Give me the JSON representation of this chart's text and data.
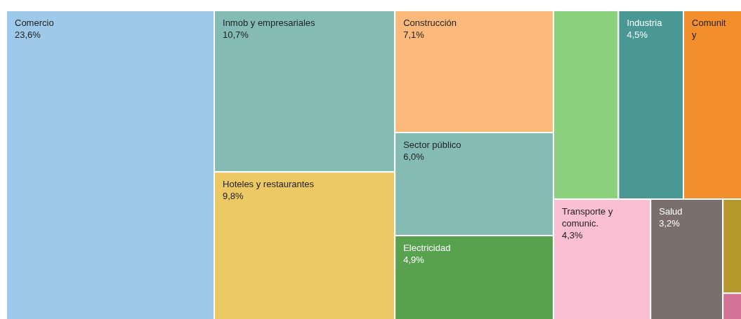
{
  "chart_data": {
    "type": "other",
    "categories": [
      "Comercio",
      "Inmob y empresariales",
      "Hoteles y restaurantes",
      "Construcción",
      "Sector público",
      "Electricidad",
      null,
      "Industria",
      "Comunit y",
      "Transporte y comunic.",
      "Salud",
      null,
      null
    ],
    "values": [
      23.6,
      10.7,
      9.8,
      7.1,
      6.0,
      4.9,
      null,
      4.5,
      null,
      4.3,
      3.2,
      null,
      null
    ],
    "value_labels": [
      "23,6%",
      "10,7%",
      "9,8%",
      "7,1%",
      "6,0%",
      "4,9%",
      null,
      "4,5%",
      null,
      "4,3%",
      "3,2%",
      null,
      null
    ],
    "colors": [
      "#9fc9e8",
      "#84bcb4",
      "#ecc964",
      "#fbb97c",
      "#84bcb4",
      "#58a14e",
      "#8cd17d",
      "#499894",
      "#f28e2b",
      "#fabfd2",
      "#79706e",
      "#b6992d",
      "#d37295"
    ]
  }
}
